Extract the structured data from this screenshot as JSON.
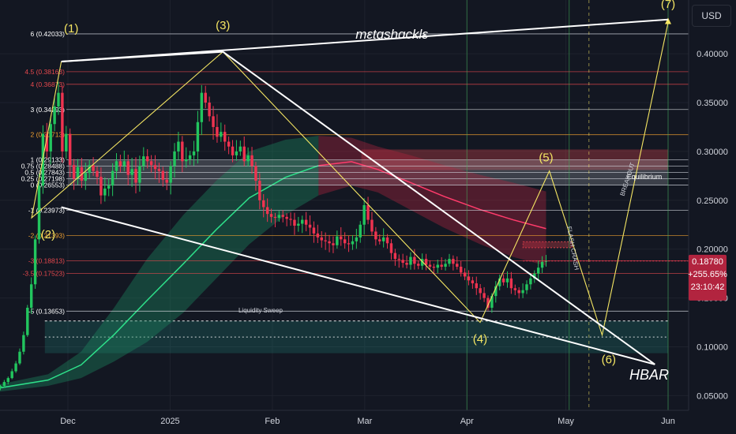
{
  "currency_button": "USD",
  "chart_data": {
    "type": "candlestick",
    "symbol": "HBAR",
    "watermark": "mɛtɑshɑcklɛ",
    "price_axis": {
      "ylim": [
        0.035,
        0.455
      ],
      "ticks": [
        "0.40000",
        "0.35000",
        "0.30000",
        "0.25000",
        "0.20000",
        "0.15000",
        "0.10000",
        "0.05000"
      ],
      "tick_values": [
        0.4,
        0.35,
        0.3,
        0.25,
        0.2,
        0.15,
        0.1,
        0.05
      ]
    },
    "time_axis": {
      "labels": [
        "Dec",
        "2025",
        "Feb",
        "Mar",
        "Apr",
        "May",
        "Jun"
      ],
      "dates": [
        "2024-12-01",
        "2025-01-01",
        "2025-02-01",
        "2025-03-01",
        "2025-04-01",
        "2025-05-01",
        "2025-06-01"
      ]
    },
    "current_price": {
      "price": "0.18780",
      "change": "+255.65%",
      "countdown": "23:10:42",
      "value": 0.1878
    },
    "fib_levels": [
      {
        "label": "6 (0.42033)",
        "value": 0.42033,
        "color": "#d1d4dc"
      },
      {
        "label": "4.5 (0.38163)",
        "value": 0.38163,
        "color": "#e5484d"
      },
      {
        "label": "4 (0.36873)",
        "value": 0.36873,
        "color": "#e5484d"
      },
      {
        "label": "3 (0.34293)",
        "value": 0.34293,
        "color": "#d1d4dc"
      },
      {
        "label": "2 (0.31713)",
        "value": 0.31713,
        "color": "#f0a030"
      },
      {
        "label": "1 (0.29133)",
        "value": 0.29133,
        "color": "#d1d4dc"
      },
      {
        "label": "0.75 (0.28488)",
        "value": 0.28488,
        "color": "#d1d4dc"
      },
      {
        "label": "0.5 (0.27843)",
        "value": 0.27843,
        "color": "#d1d4dc"
      },
      {
        "label": "0.25 (0.27198)",
        "value": 0.27198,
        "color": "#d1d4dc"
      },
      {
        "label": "0 (0.26553)",
        "value": 0.26553,
        "color": "#d1d4dc"
      },
      {
        "label": "-1 (0.23973)",
        "value": 0.23973,
        "color": "#d1d4dc"
      },
      {
        "label": "-2 (0.21393)",
        "value": 0.21393,
        "color": "#f0a030"
      },
      {
        "label": "-3 (0.18813)",
        "value": 0.18813,
        "color": "#e5484d"
      },
      {
        "label": "-3.5 (0.17523)",
        "value": 0.17523,
        "color": "#e5484d"
      },
      {
        "label": "-5 (0.13653)",
        "value": 0.13653,
        "color": "#d1d4dc"
      }
    ],
    "wave_labels": [
      {
        "label": "(1)",
        "date": "2024-12-02",
        "price": 0.422
      },
      {
        "label": "(2)",
        "date": "2024-11-25",
        "price": 0.211
      },
      {
        "label": "(3)",
        "date": "2025-01-17",
        "price": 0.425
      },
      {
        "label": "(4)",
        "date": "2025-04-05",
        "price": 0.104
      },
      {
        "label": "(5)",
        "date": "2025-04-25",
        "price": 0.29
      },
      {
        "label": "(6)",
        "date": "2025-05-14",
        "price": 0.083
      },
      {
        "label": "(7)",
        "date": "2025-06-01",
        "price": 0.447
      }
    ],
    "annotations": [
      {
        "label": "Liquidity Sweep"
      },
      {
        "label": "Equilibrium"
      },
      {
        "label": "FLASH CRASH"
      },
      {
        "label": "BREAKOUT"
      }
    ],
    "wave_path": [
      {
        "date": "2024-11-29",
        "price": 0.392
      },
      {
        "date": "2024-11-20",
        "price": 0.232
      },
      {
        "date": "2025-01-17",
        "price": 0.402
      },
      {
        "date": "2025-04-05",
        "price": 0.125
      },
      {
        "date": "2025-04-26",
        "price": 0.28
      },
      {
        "date": "2025-05-12",
        "price": 0.112
      },
      {
        "date": "2025-06-01",
        "price": 0.432
      }
    ],
    "trendlines": [
      {
        "from": {
          "date": "2024-11-29",
          "price": 0.392
        },
        "to": {
          "date": "2025-06-01",
          "price": 0.435
        }
      },
      {
        "from": {
          "date": "2024-11-29",
          "price": 0.392
        },
        "to": {
          "date": "2025-01-17",
          "price": 0.402
        }
      },
      {
        "from": {
          "date": "2025-01-17",
          "price": 0.402
        },
        "to": {
          "date": "2025-05-28",
          "price": 0.082
        }
      },
      {
        "from": {
          "date": "2024-11-29",
          "price": 0.243
        },
        "to": {
          "date": "2025-05-28",
          "price": 0.082
        }
      }
    ],
    "zones": [
      {
        "name": "supply",
        "from_date": "2025-02-28",
        "to_date": "2025-06-01",
        "low": 0.281,
        "high": 0.302,
        "color": "#e5484d"
      },
      {
        "name": "equilibrium",
        "from_date": "2024-12-01",
        "to_date": "2025-06-01",
        "low": 0.266,
        "high": 0.291,
        "color": "#d1d4dc"
      },
      {
        "name": "demand",
        "from_date": "2024-11-24",
        "to_date": "2025-06-01",
        "low": 0.0935,
        "high": 0.1265,
        "color": "#22ab94"
      },
      {
        "name": "resistance-box",
        "from_date": "2025-04-18",
        "to_date": "2025-05-03",
        "low": 0.2015,
        "high": 0.2075,
        "color": "#e5484d"
      }
    ],
    "vertical_markers": [
      "2025-04-01",
      "2025-05-02",
      "2025-05-08",
      "2025-06-01"
    ],
    "closes": [
      0.055,
      0.056,
      0.058,
      0.06,
      0.064,
      0.068,
      0.075,
      0.083,
      0.095,
      0.112,
      0.14,
      0.164,
      0.21,
      0.265,
      0.318,
      0.3,
      0.328,
      0.346,
      0.36,
      0.3,
      0.318,
      0.286,
      0.272,
      0.284,
      0.27,
      0.278,
      0.286,
      0.28,
      0.274,
      0.255,
      0.262,
      0.265,
      0.28,
      0.29,
      0.285,
      0.29,
      0.276,
      0.282,
      0.268,
      0.285,
      0.295,
      0.29,
      0.286,
      0.282,
      0.28,
      0.271,
      0.268,
      0.285,
      0.3,
      0.31,
      0.29,
      0.292,
      0.296,
      0.3,
      0.33,
      0.36,
      0.35,
      0.336,
      0.325,
      0.315,
      0.32,
      0.31,
      0.305,
      0.296,
      0.3,
      0.305,
      0.29,
      0.296,
      0.285,
      0.27,
      0.25,
      0.243,
      0.236,
      0.233,
      0.232,
      0.235,
      0.233,
      0.231,
      0.23,
      0.224,
      0.226,
      0.23,
      0.225,
      0.222,
      0.216,
      0.212,
      0.209,
      0.208,
      0.206,
      0.204,
      0.213,
      0.21,
      0.206,
      0.205,
      0.208,
      0.212,
      0.225,
      0.245,
      0.23,
      0.218,
      0.21,
      0.208,
      0.212,
      0.206,
      0.196,
      0.19,
      0.189,
      0.186,
      0.184,
      0.192,
      0.185,
      0.183,
      0.19,
      0.184,
      0.182,
      0.181,
      0.184,
      0.182,
      0.185,
      0.19,
      0.185,
      0.182,
      0.176,
      0.172,
      0.168,
      0.165,
      0.16,
      0.155,
      0.15,
      0.14,
      0.152,
      0.162,
      0.17,
      0.166,
      0.17,
      0.16,
      0.158,
      0.155,
      0.158,
      0.164,
      0.17,
      0.175,
      0.181,
      0.187,
      0.1878
    ]
  }
}
